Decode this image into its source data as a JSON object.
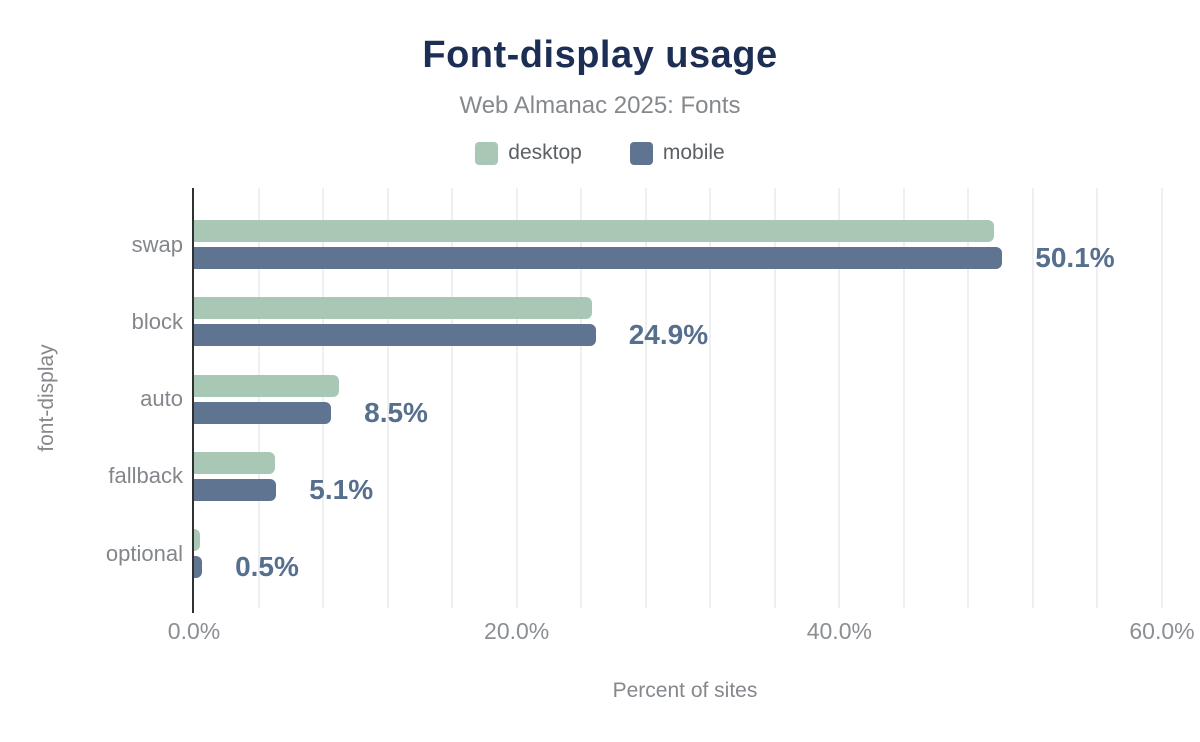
{
  "title": "Font-display usage",
  "subtitle": "Web Almanac 2025: Fonts",
  "colors": {
    "title": "#1d2e54",
    "subtitle": "#85888c",
    "legend_text": "#5c6066",
    "category_label": "#83878c",
    "tick_label": "#8b8f93",
    "axis_title": "#84888d",
    "value_label": "#566f8f",
    "grid": "#edeff0",
    "axis_line": "#2f3133",
    "desktop": "#a8c8b5",
    "mobile": "#5f7490"
  },
  "chart_data": {
    "type": "bar",
    "orientation": "horizontal",
    "title": "Font-display usage",
    "subtitle": "Web Almanac 2025: Fonts",
    "categories": [
      "swap",
      "block",
      "auto",
      "fallback",
      "optional"
    ],
    "series": [
      {
        "name": "desktop",
        "color": "#a8c8b5",
        "values": [
          49.6,
          24.7,
          9.0,
          5.0,
          0.4
        ]
      },
      {
        "name": "mobile",
        "color": "#5f7490",
        "values": [
          50.1,
          24.9,
          8.5,
          5.1,
          0.5
        ]
      }
    ],
    "value_labels": [
      "50.1%",
      "24.9%",
      "8.5%",
      "5.1%",
      "0.5%"
    ],
    "xlabel": "Percent of sites",
    "ylabel": "font-display",
    "xlim": [
      0,
      60
    ],
    "x_ticks": [
      {
        "value": 0,
        "label": "0.0%"
      },
      {
        "value": 20,
        "label": "20.0%"
      },
      {
        "value": 40,
        "label": "40.0%"
      },
      {
        "value": 60,
        "label": "60.0%"
      }
    ],
    "grid": true,
    "grid_interval": 4,
    "legend_position": "top"
  }
}
